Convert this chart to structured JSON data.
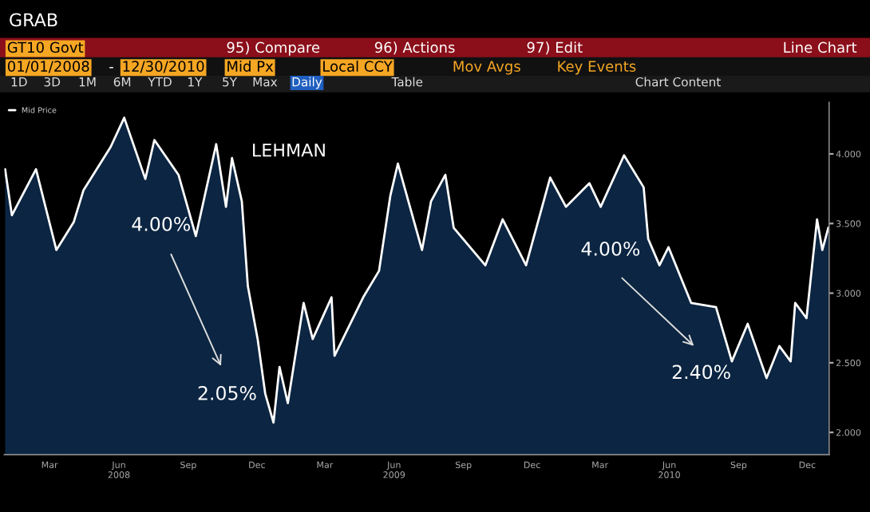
{
  "chart_data": {
    "type": "area",
    "title": "GRAB",
    "annotations": [
      "GT10 Govt",
      "95) Compare",
      "96) Actions",
      "97) Edit",
      "Line Chart",
      "01/01/2008",
      "-",
      "12/30/2010",
      "Mid Px",
      "Local CCY",
      "Mov Avgs",
      "Key Events",
      "1D",
      "3D",
      "1M",
      "6M",
      "YTD",
      "1Y",
      "5Y",
      "Max",
      "Daily",
      "Table",
      "Chart Content",
      "LEHMAN",
      "4.00%",
      "2.05%",
      "4.00%",
      "2.40%"
    ],
    "x": [
      "2008-01-02",
      "2008-01-11",
      "2008-02-12",
      "2008-03-10",
      "2008-04-02",
      "2008-04-15",
      "2008-05-21",
      "2008-06-08",
      "2008-07-06",
      "2008-07-18",
      "2008-08-19",
      "2008-09-11",
      "2008-10-08",
      "2008-10-21",
      "2008-10-29",
      "2008-11-11",
      "2008-11-19",
      "2008-12-02",
      "2008-12-12",
      "2008-12-23",
      "2008-12-31",
      "2009-01-11",
      "2009-02-01",
      "2009-02-13",
      "2009-03-10",
      "2009-03-14",
      "2009-04-21",
      "2009-05-12",
      "2009-05-27",
      "2009-06-06",
      "2009-07-08",
      "2009-07-20",
      "2009-08-08",
      "2009-08-19",
      "2009-09-30",
      "2009-10-23",
      "2009-11-23",
      "2009-12-25",
      "2010-01-15",
      "2010-02-15",
      "2010-03-02",
      "2010-03-23",
      "2010-04-02",
      "2010-04-28",
      "2010-05-04",
      "2010-05-19",
      "2010-05-31",
      "2010-06-30",
      "2010-08-02",
      "2010-08-23",
      "2010-09-13",
      "2010-10-08",
      "2010-10-25",
      "2010-11-09",
      "2010-11-15",
      "2010-11-30",
      "2010-12-14",
      "2010-12-21",
      "2010-12-29"
    ],
    "series": [
      {
        "name": "Mid Price",
        "color": "#ffffff",
        "values": [
          3.89,
          3.56,
          3.89,
          3.31,
          3.51,
          3.74,
          4.05,
          4.26,
          3.82,
          4.1,
          3.85,
          3.41,
          4.07,
          3.62,
          3.97,
          3.66,
          3.05,
          2.67,
          2.28,
          2.07,
          2.47,
          2.21,
          2.93,
          2.67,
          2.97,
          2.55,
          2.97,
          3.16,
          3.7,
          3.93,
          3.31,
          3.66,
          3.85,
          3.47,
          3.2,
          3.53,
          3.2,
          3.83,
          3.62,
          3.79,
          3.62,
          3.87,
          3.99,
          3.76,
          3.39,
          3.2,
          3.33,
          2.93,
          2.9,
          2.51,
          2.78,
          2.39,
          2.62,
          2.51,
          2.93,
          2.82,
          3.53,
          3.31,
          3.47
        ]
      }
    ],
    "xlim": [
      "2008-01-01",
      "2010-12-30"
    ],
    "xticks": [
      {
        "value": "2008-03-01",
        "label": "Mar"
      },
      {
        "value": "2008-06-01",
        "label": "Jun\n2008"
      },
      {
        "value": "2008-09-01",
        "label": "Sep"
      },
      {
        "value": "2008-12-01",
        "label": "Dec"
      },
      {
        "value": "2009-03-01",
        "label": "Mar"
      },
      {
        "value": "2009-06-01",
        "label": "Jun\n2009"
      },
      {
        "value": "2009-09-01",
        "label": "Sep"
      },
      {
        "value": "2009-12-01",
        "label": "Dec"
      },
      {
        "value": "2010-03-01",
        "label": "Mar"
      },
      {
        "value": "2010-06-01",
        "label": "Jun\n2010"
      },
      {
        "value": "2010-09-01",
        "label": "Sep"
      },
      {
        "value": "2010-12-01",
        "label": "Dec"
      }
    ],
    "ylim": [
      1.84,
      4.37
    ],
    "yticks": [
      {
        "value": 2.0,
        "label": "2.000"
      },
      {
        "value": 2.5,
        "label": "2.500"
      },
      {
        "value": 3.0,
        "label": "3.000"
      },
      {
        "value": 3.5,
        "label": "3.500"
      },
      {
        "value": 4.0,
        "label": "4.000"
      }
    ],
    "grid": false,
    "legend": "top left"
  }
}
